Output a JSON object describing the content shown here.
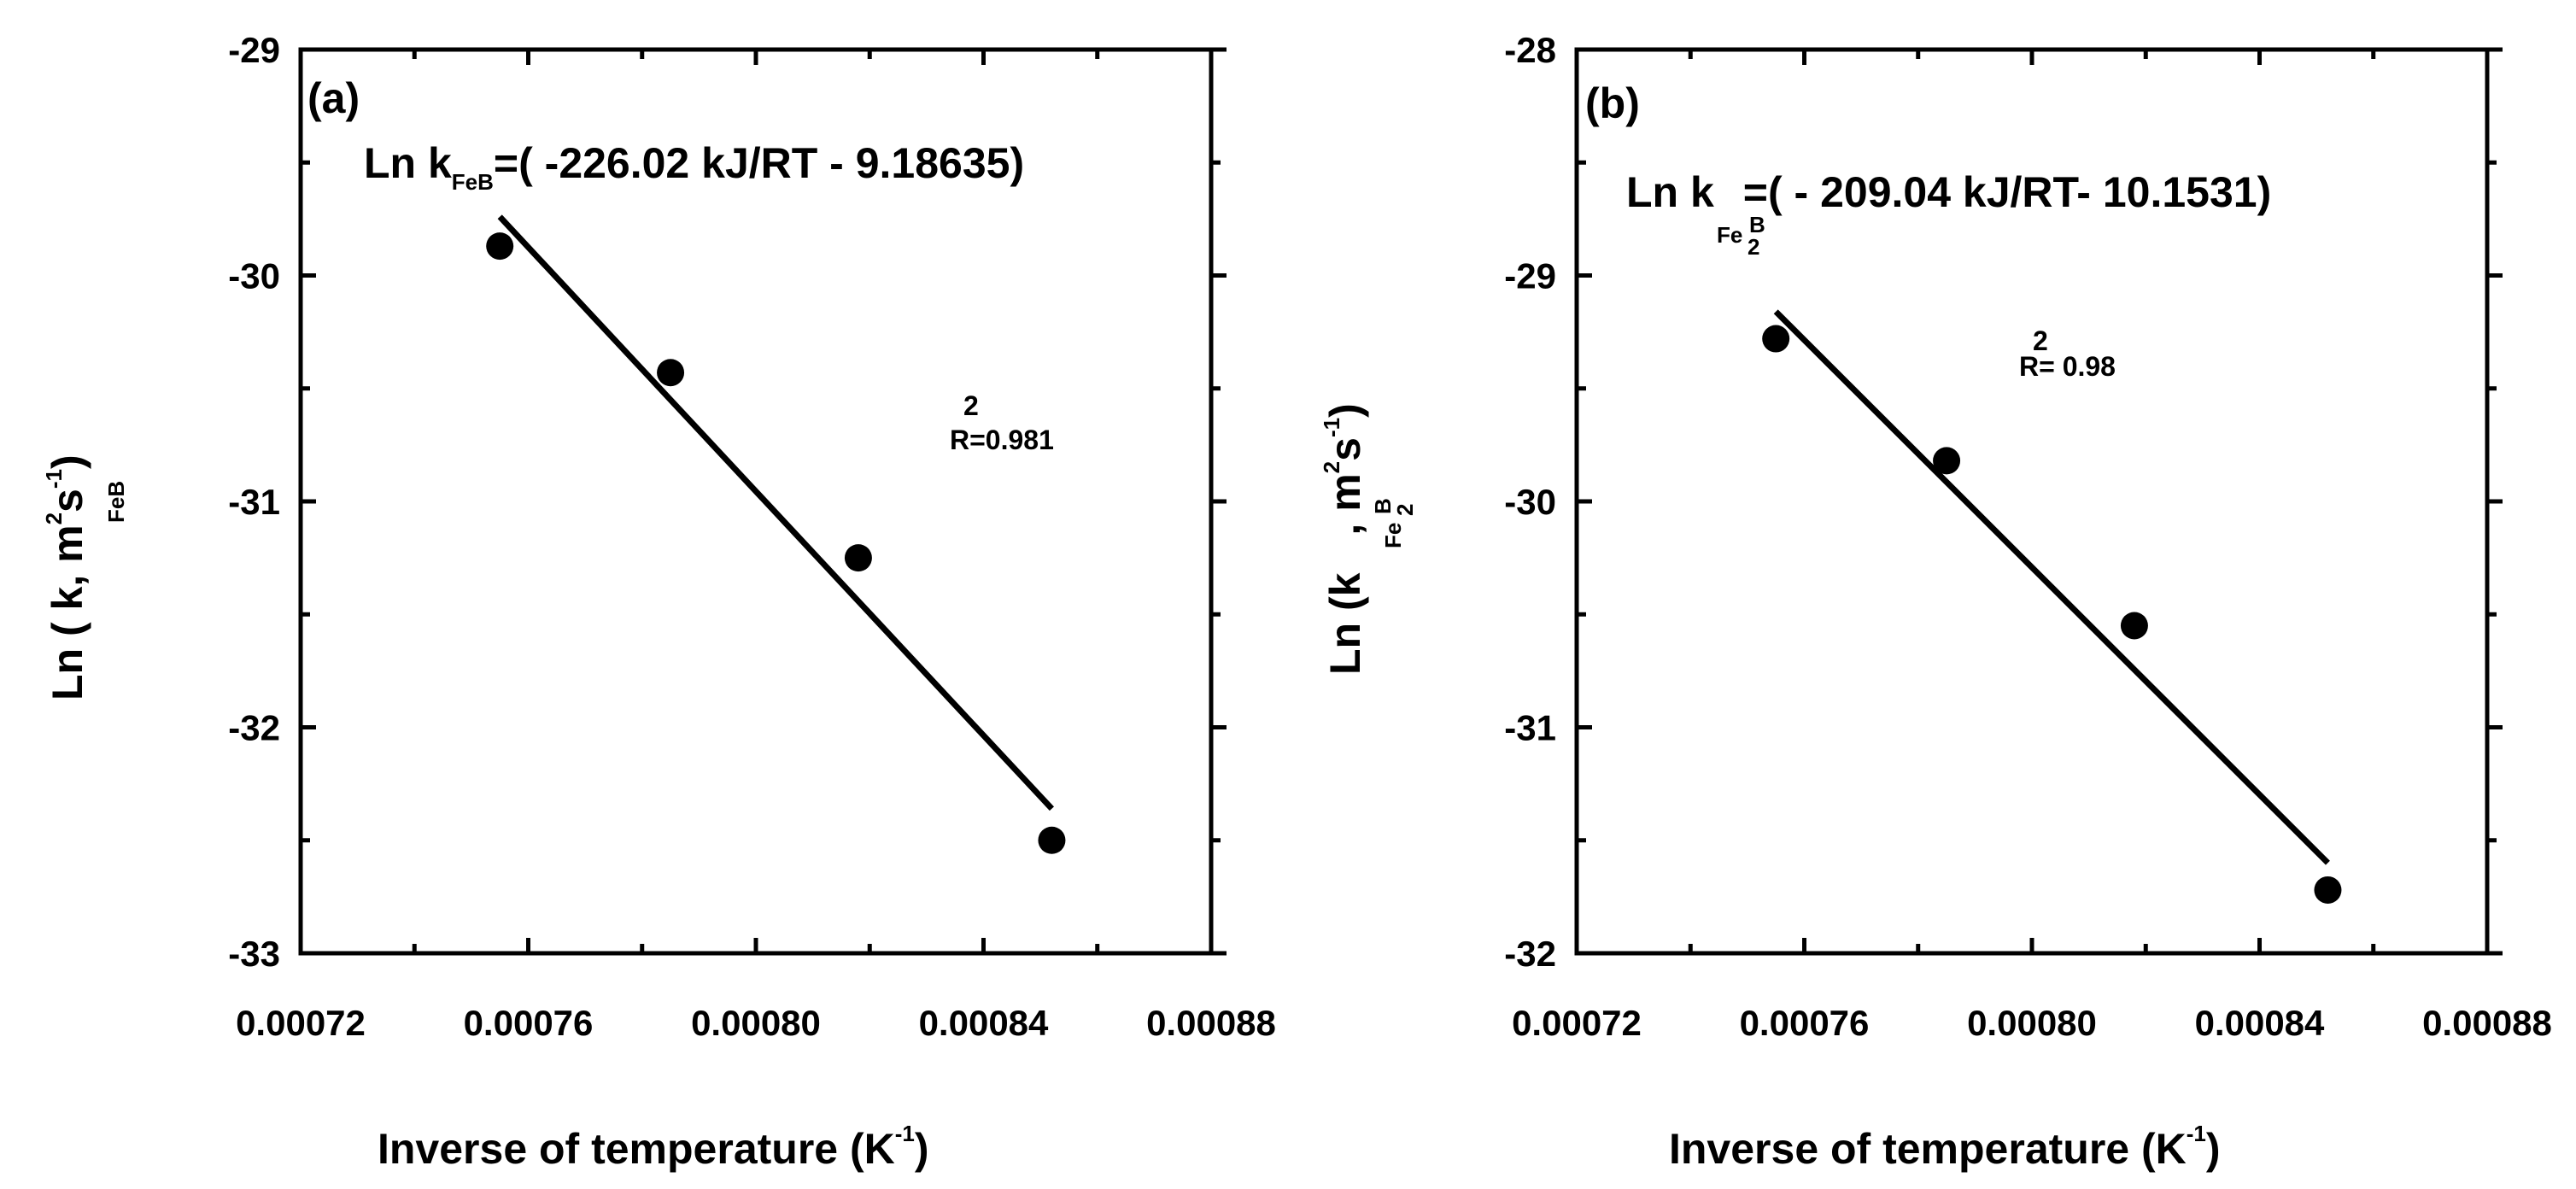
{
  "chart_data": [
    {
      "type": "scatter",
      "panel_label": "(a)",
      "equation": {
        "prefix": "Ln k",
        "subscript": "FeB",
        "body": "=( -226.02 kJ/RT - 9.18635)"
      },
      "r2": {
        "base": "R=0.981",
        "sup": "2"
      },
      "ylabel": {
        "main": "Ln ( k, m",
        "sub": "FeB",
        "sup_m": "2",
        "s": "s",
        "sup_s": "-1",
        "close": ")"
      },
      "xlabel": {
        "main": "Inverse of temperature (K",
        "sup": "-1",
        "close": ")"
      },
      "xlim": [
        0.00072,
        0.00088
      ],
      "ylim": [
        -33,
        -29
      ],
      "xticks": [
        0.00072,
        0.00076,
        0.0008,
        0.00084,
        0.00088
      ],
      "xtick_labels": [
        "0.00072",
        "0.00076",
        "0.00080",
        "0.00084",
        "0.00088"
      ],
      "yticks": [
        -33,
        -32,
        -31,
        -30,
        -29
      ],
      "ytick_labels": [
        "-33",
        "-32",
        "-31",
        "-30",
        "-29"
      ],
      "points": [
        {
          "x": 0.000755,
          "y": -29.87
        },
        {
          "x": 0.000785,
          "y": -30.43
        },
        {
          "x": 0.000818,
          "y": -31.25
        },
        {
          "x": 0.000852,
          "y": -32.5
        }
      ],
      "fit": {
        "x": [
          0.000755,
          0.000852
        ],
        "y": [
          -29.74,
          -32.36
        ]
      }
    },
    {
      "type": "scatter",
      "panel_label": "(b)",
      "equation": {
        "prefix": "Ln k",
        "sub_fe": "Fe",
        "sub_2": "2",
        "sub_b": "B",
        "body": "=( - 209.04 kJ/RT- 10.1531)"
      },
      "r2": {
        "base": "R= 0.98",
        "sup": "2"
      },
      "ylabel": {
        "main": "Ln (k",
        "sub_fe": "Fe",
        "sub_2": "2",
        "sub_b": "B",
        "comma_m": ", m",
        "sup_m": "2",
        "s": "s",
        "sup_s": "-1",
        "close": ")"
      },
      "xlabel": {
        "main": "Inverse of temperature (K",
        "sup": "-1",
        "close": ")"
      },
      "xlim": [
        0.00072,
        0.00088
      ],
      "ylim": [
        -32,
        -28
      ],
      "xticks": [
        0.00072,
        0.00076,
        0.0008,
        0.00084,
        0.00088
      ],
      "xtick_labels": [
        "0.00072",
        "0.00076",
        "0.00080",
        "0.00084",
        "0.00088"
      ],
      "yticks": [
        -32,
        -31,
        -30,
        -29,
        -28
      ],
      "ytick_labels": [
        "-32",
        "-31",
        "-30",
        "-29",
        "-28"
      ],
      "points": [
        {
          "x": 0.000755,
          "y": -29.28
        },
        {
          "x": 0.000785,
          "y": -29.82
        },
        {
          "x": 0.000818,
          "y": -30.55
        },
        {
          "x": 0.000852,
          "y": -31.72
        }
      ],
      "fit": {
        "x": [
          0.000755,
          0.000852
        ],
        "y": [
          -29.16,
          -31.6
        ]
      }
    }
  ]
}
